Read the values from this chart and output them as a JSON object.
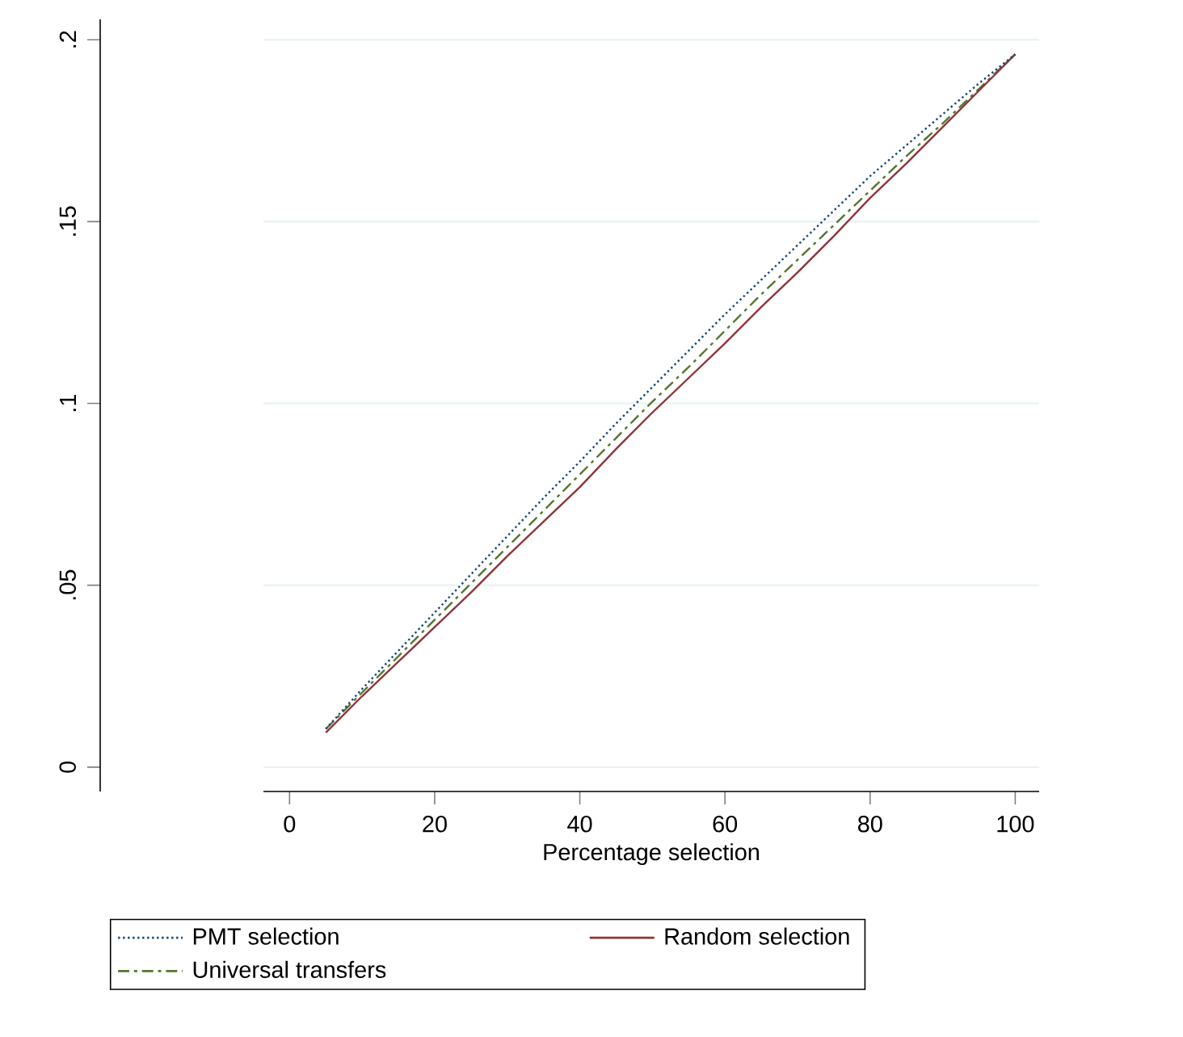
{
  "chart_data": {
    "type": "line",
    "xlabel": "Percentage selection",
    "x": [
      5,
      10,
      15,
      20,
      25,
      30,
      35,
      40,
      45,
      50,
      55,
      60,
      65,
      70,
      75,
      80,
      85,
      90,
      95,
      100
    ],
    "series": [
      {
        "name": "PMT selection",
        "color": "#1a476f",
        "line_style": "dotted",
        "values": [
          0.0105,
          0.0215,
          0.032,
          0.0425,
          0.053,
          0.0635,
          0.074,
          0.084,
          0.0945,
          0.1045,
          0.1145,
          0.1245,
          0.134,
          0.1435,
          0.153,
          0.1625,
          0.171,
          0.1795,
          0.188,
          0.196
        ]
      },
      {
        "name": "Random selection",
        "color": "#90353b",
        "line_style": "solid",
        "values": [
          0.0095,
          0.0195,
          0.029,
          0.0385,
          0.048,
          0.058,
          0.0675,
          0.077,
          0.0875,
          0.0975,
          0.107,
          0.1165,
          0.1265,
          0.136,
          0.146,
          0.1565,
          0.166,
          0.176,
          0.186,
          0.196
        ]
      },
      {
        "name": "Universal transfers",
        "color": "#55752f",
        "line_style": "dashed",
        "values": [
          0.0105,
          0.0205,
          0.0305,
          0.0405,
          0.0505,
          0.0605,
          0.0705,
          0.0805,
          0.0905,
          0.1005,
          0.11,
          0.12,
          0.13,
          0.1395,
          0.149,
          0.1585,
          0.168,
          0.177,
          0.1865,
          0.196
        ]
      }
    ],
    "xlim": [
      -3.6,
      103.3
    ],
    "xticks": [
      0,
      20,
      40,
      60,
      80,
      100
    ],
    "ylim": [
      -0.0067,
      0.2056
    ],
    "yticks": [
      0,
      {
        "value": 0.05,
        "label": ".05"
      },
      {
        "value": 0.1,
        "label": ".1"
      },
      {
        "value": 0.15,
        "label": ".15"
      },
      {
        "value": 0.2,
        "label": ".2"
      }
    ],
    "grid": "y",
    "legend": "bottom",
    "marker": "none"
  }
}
